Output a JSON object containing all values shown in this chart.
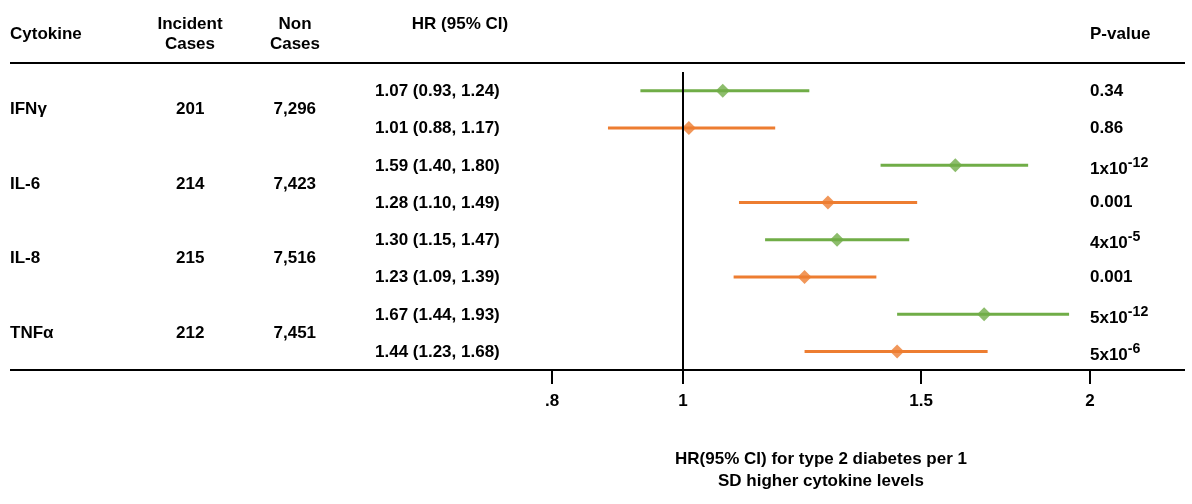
{
  "chart_data": {
    "type": "scatter",
    "orientation": "horizontal",
    "log": "x",
    "ylabel": "HR (95% CI)",
    "xlabel": "HR(95% CI) for type 2 diabetes per 1 SD higher cytokine levels",
    "categories": [
      "1.07 (0.93, 1.24)",
      "1.01 (0.88, 1.17)",
      "1.59 (1.40, 1.80)",
      "1.28 (1.10, 1.49)",
      "1.30 (1.15, 1.47)",
      "1.23 (1.09, 1.39)",
      "1.67 (1.44, 1.93)",
      "1.44 (1.23, 1.68)"
    ],
    "series": [
      {
        "color": "#70ad47",
        "values": [
          1.07,
          null,
          1.59,
          null,
          1.3,
          null,
          1.67,
          null
        ],
        "errors": [
          [
            0.93,
            1.24
          ],
          null,
          [
            1.4,
            1.8
          ],
          null,
          [
            1.15,
            1.47
          ],
          null,
          [
            1.44,
            1.93
          ],
          null
        ]
      },
      {
        "color": "#ed7d31",
        "values": [
          null,
          1.01,
          null,
          1.28,
          null,
          1.23,
          null,
          1.44
        ],
        "errors": [
          null,
          [
            0.88,
            1.17
          ],
          null,
          [
            1.1,
            1.49
          ],
          null,
          [
            1.09,
            1.39
          ],
          null,
          [
            1.23,
            1.68
          ]
        ]
      }
    ],
    "xlim": [
      0.8,
      2
    ],
    "xticks": [
      {
        "value": 0.8,
        "label": ".8"
      },
      1,
      1.5,
      2
    ],
    "ref_lines": [
      {
        "axis": "x",
        "value": 1,
        "color": "#000000"
      }
    ],
    "marker": "diamond",
    "grid": false,
    "annotations": [
      "Cytokine",
      "Incident Cases",
      "Non Cases",
      "P-value",
      "IFNγ",
      "201",
      "7,296",
      "IL-6",
      "214",
      "7,423",
      "IL-8",
      "215",
      "7,516",
      "TNFα",
      "212",
      "7,451",
      "0.34",
      "0.86",
      "1x10$^{-12}$",
      "0.001",
      "4x10$^{-5}$",
      "0.001",
      "5x10$^{-12}$",
      "5x10$^{-6}$"
    ]
  }
}
